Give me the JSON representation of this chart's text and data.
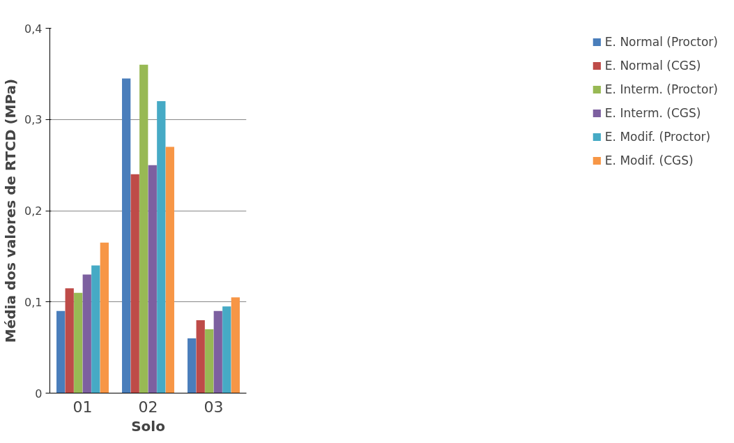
{
  "chart_data": {
    "type": "bar",
    "xlabel": "Solo",
    "ylabel": "Média dos valores de RTCD (MPa)",
    "categories": [
      "01",
      "02",
      "03"
    ],
    "ylim": [
      0,
      0.4
    ],
    "yticks": [
      0,
      {
        "value": 0.1,
        "label": "0,1"
      },
      {
        "value": 0.2,
        "label": "0,2"
      },
      {
        "value": 0.3,
        "label": "0,3"
      },
      {
        "value": 0.4,
        "label": "0,4"
      }
    ],
    "grid": "y",
    "legend": "right",
    "series": [
      {
        "name": "E. Normal (Proctor)",
        "color": "#4a7ebb",
        "values": [
          0.09,
          0.345,
          0.06
        ]
      },
      {
        "name": "E. Normal (CGS)",
        "color": "#be4b48",
        "values": [
          0.115,
          0.24,
          0.08
        ]
      },
      {
        "name": "E. Interm. (Proctor)",
        "color": "#98b954",
        "values": [
          0.11,
          0.36,
          0.07
        ]
      },
      {
        "name": "E. Interm. (CGS)",
        "color": "#7d60a0",
        "values": [
          0.13,
          0.25,
          0.09
        ]
      },
      {
        "name": "E. Modif. (Proctor)",
        "color": "#46aac5",
        "values": [
          0.14,
          0.32,
          0.095
        ]
      },
      {
        "name": "E. Modif. (CGS)",
        "color": "#f79646",
        "values": [
          0.165,
          0.27,
          0.105
        ]
      }
    ]
  }
}
